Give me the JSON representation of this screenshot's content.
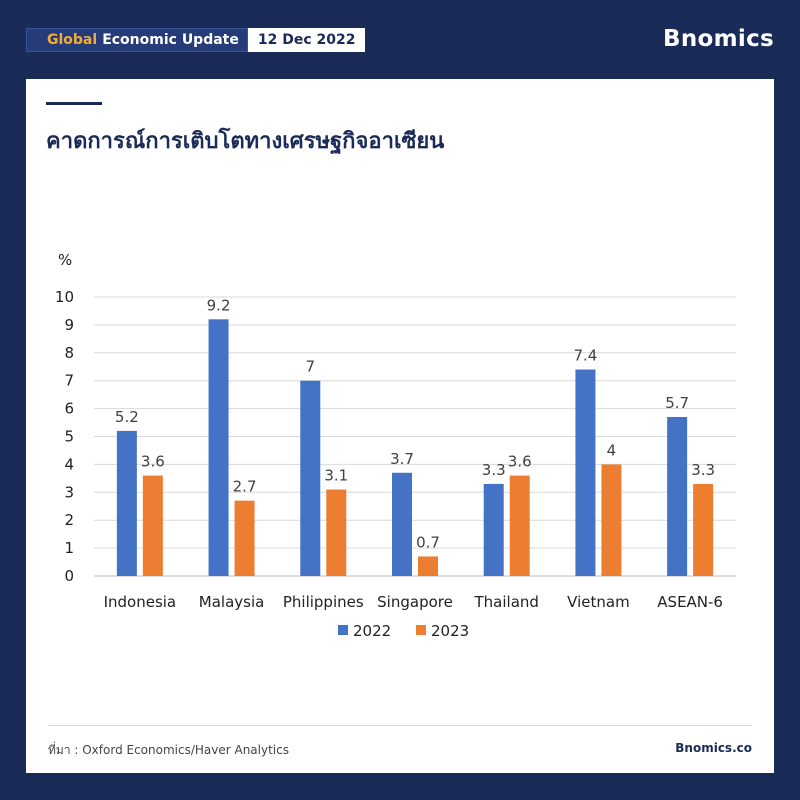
{
  "header": {
    "badge_accent": "Global",
    "badge_text": "Economic Update",
    "date": "12 Dec 2022",
    "brand": "Bnomics"
  },
  "title": "คาดการณ์การเติบโตทางเศรษฐกิจอาเซียน",
  "footer": {
    "source": "ที่มา : Oxford Economics/Haver Analytics",
    "site": "Bnomics.co"
  },
  "colors": {
    "background": "#1b2b57",
    "accent": "#f0ad3a",
    "series_2022": "#4472c4",
    "series_2023": "#ed7d31"
  },
  "chart_data": {
    "type": "bar",
    "ylabel": "%",
    "ylim": [
      0,
      10
    ],
    "yticks": [
      0,
      1,
      2,
      3,
      4,
      5,
      6,
      7,
      8,
      9,
      10
    ],
    "grid": true,
    "legend": "bottom-center",
    "categories": [
      "Indonesia",
      "Malaysia",
      "Philippines",
      "Singapore",
      "Thailand",
      "Vietnam",
      "ASEAN-6"
    ],
    "series": [
      {
        "name": "2022",
        "values": [
          5.2,
          9.2,
          7,
          3.7,
          3.3,
          7.4,
          5.7
        ]
      },
      {
        "name": "2023",
        "values": [
          3.6,
          2.7,
          3.1,
          0.7,
          3.6,
          4,
          3.3
        ]
      }
    ]
  }
}
